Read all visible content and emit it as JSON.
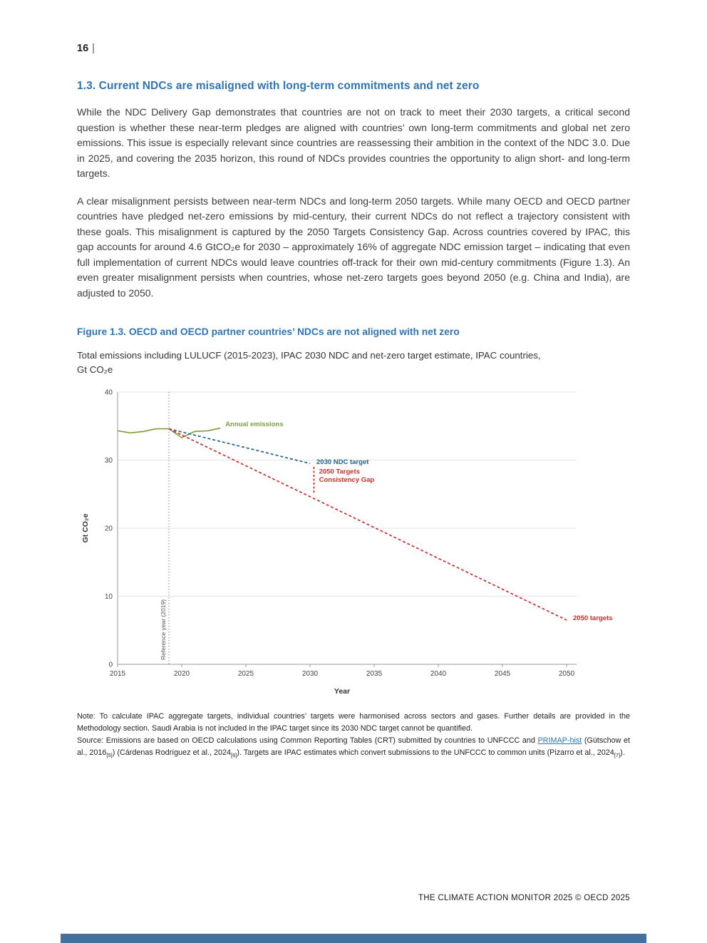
{
  "page": {
    "number": "16",
    "separator": "|",
    "footer_text": "THE CLIMATE ACTION MONITOR 2025 © OECD 2025"
  },
  "section": {
    "heading": "1.3. Current NDCs are misaligned with long-term commitments and net zero",
    "paragraphs": [
      "While the NDC Delivery Gap demonstrates that countries are not on track to meet their 2030 targets, a critical second question is whether these near-term pledges are aligned with countries’ own long-term commitments and global net zero emissions. This issue is especially relevant since countries are reassessing their ambition in the context of the NDC 3.0. Due in 2025, and covering the 2035 horizon, this round of NDCs provides countries the opportunity to align short- and long-term targets.",
      "A clear misalignment persists between near-term NDCs and long-term 2050 targets. While many OECD and OECD partner countries have pledged net-zero emissions by mid-century, their current NDCs do not reflect a trajectory consistent with these goals. This misalignment is captured by the 2050 Targets Consistency Gap. Across countries covered by IPAC, this gap accounts for around 4.6 GtCO₂e for 2030 – approximately 16% of aggregate NDC emission target – indicating that even full implementation of current NDCs would leave countries off-track for their own mid-century commitments (Figure 1.3). An even greater misalignment persists when countries, whose net-zero targets goes beyond 2050 (e.g. China and India), are adjusted to 2050."
    ]
  },
  "figure": {
    "heading": "Figure 1.3. OECD and OECD partner countries’ NDCs are not aligned with net zero",
    "subtitle_line1": "Total emissions including LULUCF (2015-2023), IPAC 2030 NDC and net-zero target estimate, IPAC countries,",
    "subtitle_line2": "Gt CO₂e",
    "note": "Note: To calculate IPAC aggregate targets, individual countries’ targets were harmonised across sectors and gases. Further details are provided in the Methodology section. Saudi Arabia is not included in the IPAC target since its 2030 NDC target cannot be quantified.",
    "source": {
      "prefix": "Source: Emissions are based on OECD calculations using Common Reporting Tables (CRT) submitted by countries to UNFCCC and ",
      "link_text": "PRIMAP-hist",
      "mid1": " (Gütschow et al., 2016",
      "sub1": "[5]",
      "mid2": ") (Cárdenas Rodríguez et al., 2024",
      "sub2": "[6]",
      "mid3": "). Targets are IPAC estimates which convert submissions to the UNFCCC to common units (Pizarro et al., 2024",
      "sub3": "[7]",
      "suffix": ")."
    }
  },
  "chart_data": {
    "type": "line",
    "title": "Figure 1.3. OECD and OECD partner countries’ NDCs are not aligned with net zero",
    "subtitle": "Total emissions including LULUCF (2015-2023), IPAC 2030 NDC and net-zero target estimate, IPAC countries, Gt CO₂e",
    "xlabel": "Year",
    "ylabel": "Gt CO₂e",
    "xlim": [
      2015,
      2050
    ],
    "ylim": [
      0,
      40
    ],
    "xticks": [
      2015,
      2020,
      2025,
      2030,
      2035,
      2040,
      2045,
      2050
    ],
    "yticks": [
      0,
      10,
      20,
      30,
      40
    ],
    "grid": "horizontal",
    "legend_position": "inline-labels",
    "reference_line": {
      "x": 2019,
      "label": "Reference year (2019)"
    },
    "series": [
      {
        "name": "Annual emissions",
        "color": "#7e9e3e",
        "style": "solid",
        "x": [
          2015,
          2016,
          2017,
          2018,
          2019,
          2020,
          2021,
          2022,
          2023
        ],
        "y": [
          34.3,
          34.0,
          34.2,
          34.6,
          34.6,
          33.3,
          34.2,
          34.3,
          34.7
        ]
      },
      {
        "name": "2030 NDC target",
        "color": "#20618d",
        "style": "dashed",
        "x": [
          2019,
          2030
        ],
        "y": [
          34.6,
          29.5
        ]
      },
      {
        "name": "2050 targets",
        "color": "#c9302c",
        "style": "dashed",
        "x": [
          2019,
          2050
        ],
        "y": [
          34.6,
          6.5
        ]
      }
    ],
    "gap": {
      "x": 2030.3,
      "y_top": 29.0,
      "y_bottom": 25.0,
      "color": "#c9302c",
      "value_gtco2e": 4.6
    },
    "annotations": [
      {
        "text": "Annual emissions",
        "x": 2023.4,
        "y": 35.0,
        "color": "#7e9e3e"
      },
      {
        "text": "2030 NDC target",
        "x": 2030.5,
        "y": 29.4,
        "color": "#20618d"
      },
      {
        "text": "2050 Targets",
        "x": 2030.7,
        "y": 28.0,
        "color": "#c9302c"
      },
      {
        "text": "Consistency Gap",
        "x": 2030.7,
        "y": 26.8,
        "color": "#c9302c"
      },
      {
        "text": "2050 targets",
        "x": 2050.5,
        "y": 6.5,
        "color": "#c9302c"
      }
    ]
  },
  "colors": {
    "heading_blue": "#2e74b5",
    "link_blue": "#2e74b5",
    "footer_bar_blue": "#41719c",
    "annual_emissions_green": "#7e9e3e",
    "ndc_target_blue": "#20618d",
    "targets_2050_red": "#c9302c"
  }
}
